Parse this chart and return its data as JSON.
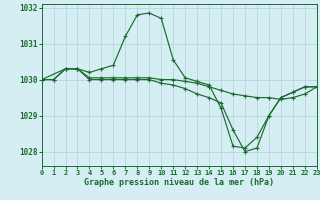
{
  "title": "Graphe pression niveau de la mer (hPa)",
  "bg_color": "#d4eef3",
  "grid_color": "#b8d5dc",
  "line_color": "#1a6b2e",
  "x_min": 0,
  "x_max": 23,
  "y_min": 1027.6,
  "y_max": 1032.1,
  "yticks": [
    1028,
    1029,
    1030,
    1031,
    1032
  ],
  "xticks": [
    0,
    1,
    2,
    3,
    4,
    5,
    6,
    7,
    8,
    9,
    10,
    11,
    12,
    13,
    14,
    15,
    16,
    17,
    18,
    19,
    20,
    21,
    22,
    23
  ],
  "series": [
    {
      "x": [
        0,
        1,
        2,
        3,
        4,
        5,
        6,
        7,
        8,
        9,
        10,
        11,
        12,
        13,
        14,
        15,
        16,
        17,
        18,
        19,
        20,
        21,
        22,
        23
      ],
      "y": [
        1030.0,
        1030.0,
        1030.3,
        1030.3,
        1030.2,
        1030.3,
        1030.4,
        1031.2,
        1031.8,
        1031.85,
        1031.7,
        1030.55,
        1030.05,
        1029.95,
        1029.85,
        1029.2,
        1028.15,
        1028.1,
        1028.4,
        1029.0,
        1029.5,
        1029.65,
        1029.8,
        1029.8
      ]
    },
    {
      "x": [
        0,
        1,
        2,
        3,
        4,
        5,
        6,
        7,
        8,
        9,
        10,
        11,
        12,
        13,
        14,
        15,
        16,
        17,
        18,
        19,
        20,
        21,
        22,
        23
      ],
      "y": [
        1030.0,
        1030.0,
        1030.3,
        1030.3,
        1030.05,
        1030.05,
        1030.05,
        1030.05,
        1030.05,
        1030.05,
        1030.0,
        1030.0,
        1029.95,
        1029.9,
        1029.8,
        1029.7,
        1029.6,
        1029.55,
        1029.5,
        1029.5,
        1029.45,
        1029.5,
        1029.6,
        1029.8
      ]
    },
    {
      "x": [
        0,
        2,
        3,
        4,
        5,
        6,
        7,
        8,
        9,
        10,
        11,
        12,
        13,
        14,
        15,
        16,
        17,
        18,
        19,
        20,
        21,
        22,
        23
      ],
      "y": [
        1030.0,
        1030.3,
        1030.3,
        1030.0,
        1030.0,
        1030.0,
        1030.0,
        1030.0,
        1030.0,
        1029.9,
        1029.85,
        1029.75,
        1029.6,
        1029.5,
        1029.35,
        1028.6,
        1028.0,
        1028.1,
        1029.0,
        1029.5,
        1029.65,
        1029.8,
        1029.8
      ]
    }
  ]
}
